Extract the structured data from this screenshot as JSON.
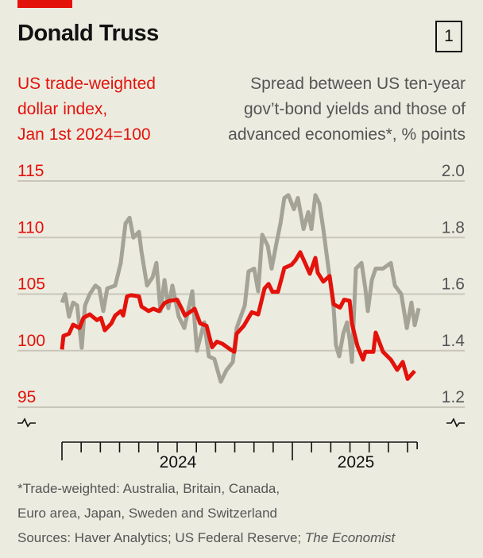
{
  "header": {
    "title": "Donald Truss",
    "chart_number": "1"
  },
  "colors": {
    "red": "#e3120b",
    "gray": "#a5a396",
    "background": "#ecebe0"
  },
  "chart_data": {
    "type": "line",
    "title": "Donald Truss",
    "x_unit": "months since Jan 1st 2024",
    "xlim": [
      0,
      18.5
    ],
    "x_tick_labels": [
      "2024",
      "2025"
    ],
    "left_axis": {
      "label_lines": [
        "US trade-weighted",
        "dollar index,",
        "Jan 1st 2024=100"
      ],
      "ticks": [
        "115",
        "110",
        "105",
        "100",
        "95"
      ],
      "ylim": [
        95,
        115
      ]
    },
    "right_axis": {
      "label_lines": [
        "Spread between US ten-year",
        "gov’t-bond yields and those of",
        "advanced economies*, % points"
      ],
      "ticks": [
        "2.0",
        "1.8",
        "1.6",
        "1.4",
        "1.2"
      ],
      "ylim": [
        1.2,
        2.0
      ]
    },
    "series": [
      {
        "name": "US trade-weighted dollar index",
        "axis": "left",
        "color": "#e3120b",
        "points": [
          [
            0,
            100.1
          ],
          [
            0.08,
            101.3
          ],
          [
            0.37,
            101.5
          ],
          [
            0.58,
            102.3
          ],
          [
            0.91,
            102.0
          ],
          [
            1.12,
            102.9
          ],
          [
            1.45,
            103.2
          ],
          [
            1.82,
            102.7
          ],
          [
            2.03,
            102.9
          ],
          [
            2.23,
            101.8
          ],
          [
            2.57,
            102.4
          ],
          [
            2.77,
            103.1
          ],
          [
            3.06,
            103.5
          ],
          [
            3.19,
            103.1
          ],
          [
            3.39,
            104.8
          ],
          [
            3.6,
            104.9
          ],
          [
            4.01,
            104.8
          ],
          [
            4.14,
            103.9
          ],
          [
            4.51,
            103.5
          ],
          [
            4.76,
            103.7
          ],
          [
            5.05,
            103.5
          ],
          [
            5.34,
            104.2
          ],
          [
            5.59,
            104.4
          ],
          [
            6.0,
            104.5
          ],
          [
            6.21,
            103.8
          ],
          [
            6.41,
            103.1
          ],
          [
            6.91,
            103.7
          ],
          [
            7.2,
            102.4
          ],
          [
            7.53,
            102.2
          ],
          [
            7.82,
            100.3
          ],
          [
            8.07,
            100.8
          ],
          [
            8.36,
            100.6
          ],
          [
            8.77,
            100.1
          ],
          [
            8.98,
            99.9
          ],
          [
            9.1,
            101.5
          ],
          [
            9.47,
            102.2
          ],
          [
            9.89,
            103.4
          ],
          [
            10.22,
            103.2
          ],
          [
            10.55,
            105.5
          ],
          [
            10.76,
            105.9
          ],
          [
            10.96,
            105.2
          ],
          [
            11.25,
            105.2
          ],
          [
            11.58,
            107.3
          ],
          [
            11.96,
            107.6
          ],
          [
            12.16,
            108.0
          ],
          [
            12.41,
            108.7
          ],
          [
            12.7,
            107.6
          ],
          [
            12.91,
            106.8
          ],
          [
            13.2,
            108.2
          ],
          [
            13.32,
            106.9
          ],
          [
            13.61,
            106.1
          ],
          [
            13.94,
            106.6
          ],
          [
            14.15,
            104.1
          ],
          [
            14.48,
            103.8
          ],
          [
            14.69,
            104.5
          ],
          [
            14.98,
            104.4
          ],
          [
            15.1,
            102.4
          ],
          [
            15.39,
            100.4
          ],
          [
            15.68,
            99.2
          ],
          [
            15.8,
            99.9
          ],
          [
            16.22,
            99.9
          ],
          [
            16.34,
            101.6
          ],
          [
            16.72,
            99.9
          ],
          [
            17.13,
            99.2
          ],
          [
            17.46,
            98.3
          ],
          [
            17.75,
            99.0
          ],
          [
            18.0,
            97.5
          ],
          [
            18.37,
            98.2
          ]
        ]
      },
      {
        "name": "US minus advanced economies ten-year bond yield spread",
        "axis": "right",
        "color": "#a5a396",
        "points": [
          [
            0,
            1.57
          ],
          [
            0.17,
            1.6
          ],
          [
            0.37,
            1.52
          ],
          [
            0.58,
            1.57
          ],
          [
            0.79,
            1.56
          ],
          [
            1.03,
            1.41
          ],
          [
            1.2,
            1.56
          ],
          [
            1.45,
            1.6
          ],
          [
            1.74,
            1.63
          ],
          [
            1.94,
            1.62
          ],
          [
            2.15,
            1.54
          ],
          [
            2.36,
            1.62
          ],
          [
            2.77,
            1.63
          ],
          [
            3.06,
            1.71
          ],
          [
            3.31,
            1.85
          ],
          [
            3.52,
            1.87
          ],
          [
            3.72,
            1.8
          ],
          [
            4.01,
            1.82
          ],
          [
            4.14,
            1.75
          ],
          [
            4.43,
            1.63
          ],
          [
            4.72,
            1.66
          ],
          [
            4.92,
            1.71
          ],
          [
            5.13,
            1.54
          ],
          [
            5.34,
            1.65
          ],
          [
            5.54,
            1.55
          ],
          [
            5.75,
            1.63
          ],
          [
            6.08,
            1.52
          ],
          [
            6.37,
            1.48
          ],
          [
            6.79,
            1.61
          ],
          [
            7.03,
            1.4
          ],
          [
            7.41,
            1.5
          ],
          [
            7.65,
            1.38
          ],
          [
            7.94,
            1.37
          ],
          [
            8.27,
            1.29
          ],
          [
            8.56,
            1.33
          ],
          [
            8.9,
            1.36
          ],
          [
            9.1,
            1.48
          ],
          [
            9.52,
            1.56
          ],
          [
            9.72,
            1.68
          ],
          [
            10.01,
            1.69
          ],
          [
            10.22,
            1.61
          ],
          [
            10.43,
            1.81
          ],
          [
            10.72,
            1.77
          ],
          [
            10.92,
            1.69
          ],
          [
            11.17,
            1.78
          ],
          [
            11.38,
            1.85
          ],
          [
            11.58,
            1.94
          ],
          [
            11.79,
            1.95
          ],
          [
            12.08,
            1.9
          ],
          [
            12.29,
            1.94
          ],
          [
            12.58,
            1.83
          ],
          [
            12.83,
            1.89
          ],
          [
            12.99,
            1.83
          ],
          [
            13.2,
            1.95
          ],
          [
            13.41,
            1.92
          ],
          [
            13.61,
            1.83
          ],
          [
            13.94,
            1.66
          ],
          [
            14.15,
            1.55
          ],
          [
            14.27,
            1.42
          ],
          [
            14.44,
            1.38
          ],
          [
            14.65,
            1.46
          ],
          [
            14.85,
            1.5
          ],
          [
            14.98,
            1.44
          ],
          [
            15.1,
            1.36
          ],
          [
            15.31,
            1.69
          ],
          [
            15.6,
            1.71
          ],
          [
            15.8,
            1.62
          ],
          [
            15.93,
            1.54
          ],
          [
            16.14,
            1.65
          ],
          [
            16.34,
            1.69
          ],
          [
            16.72,
            1.69
          ],
          [
            17.13,
            1.71
          ],
          [
            17.34,
            1.63
          ],
          [
            17.67,
            1.6
          ],
          [
            17.96,
            1.48
          ],
          [
            18.2,
            1.57
          ],
          [
            18.37,
            1.49
          ],
          [
            18.58,
            1.55
          ]
        ]
      }
    ],
    "grid": true
  },
  "footer": {
    "note_lines": [
      "*Trade-weighted: Australia, Britain, Canada,",
      "Euro area, Japan, Sweden and Switzerland"
    ],
    "sources_prefix": "Sources: Haver Analytics; US Federal Reserve; ",
    "sources_italic": "The Economist"
  }
}
